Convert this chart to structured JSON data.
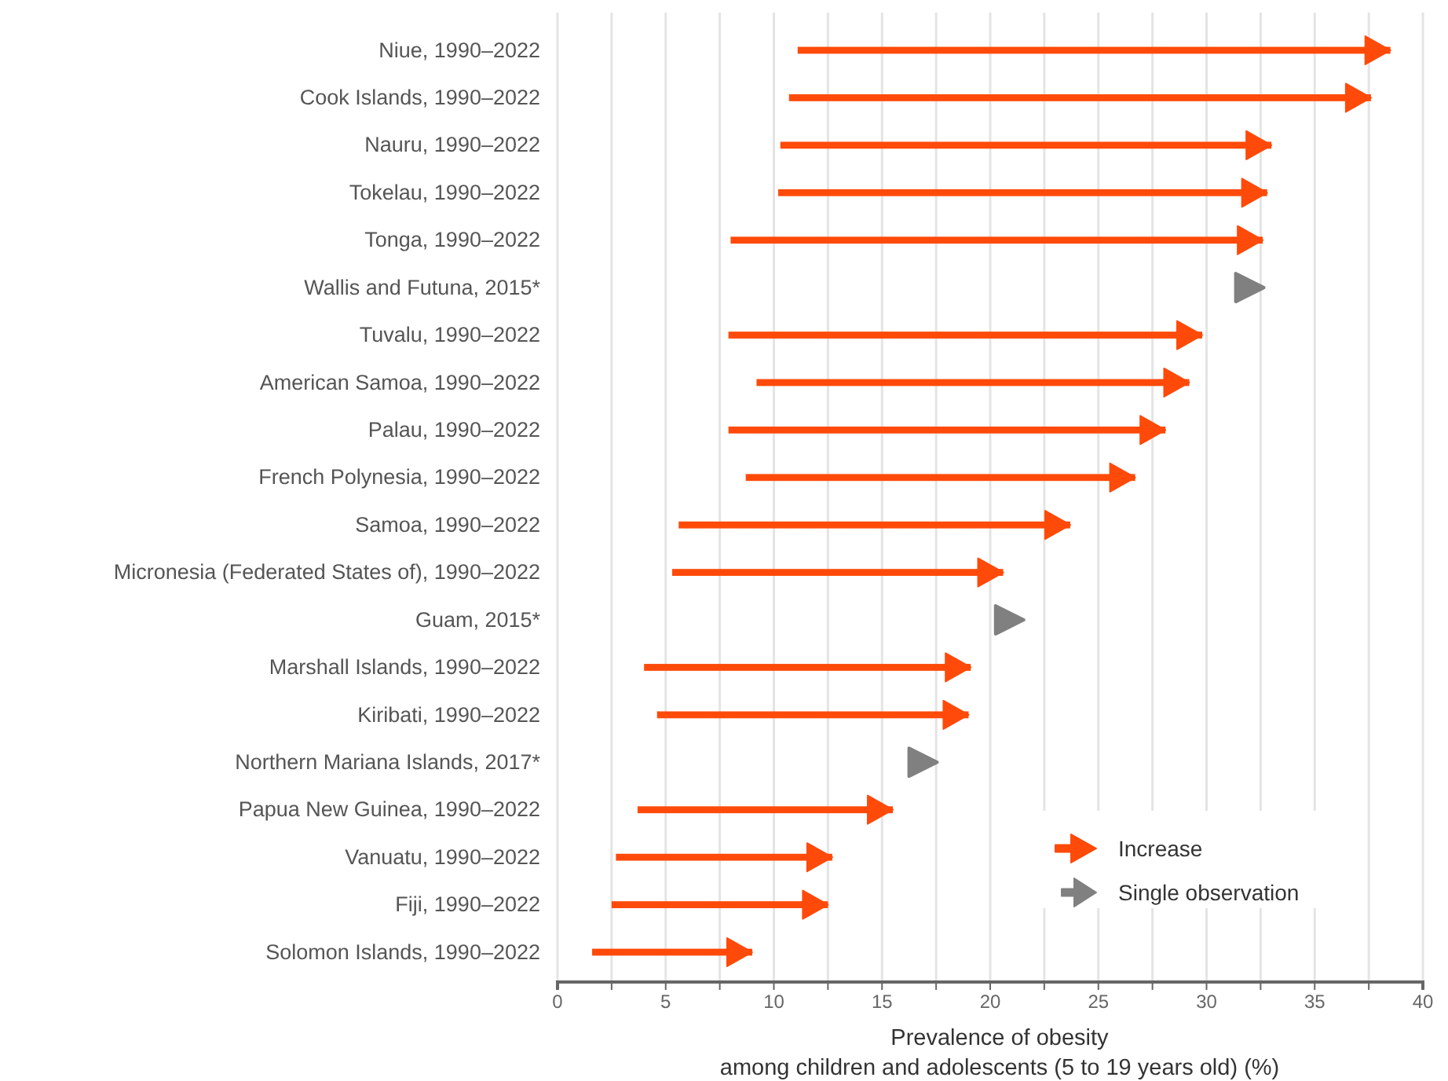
{
  "chart_data": {
    "type": "bar",
    "orientation": "horizontal",
    "categories": [
      "Niue, 1990–2022",
      "Cook Islands, 1990–2022",
      "Nauru, 1990–2022",
      "Tokelau, 1990–2022",
      "Tonga, 1990–2022",
      "Wallis and Futuna, 2015*",
      "Tuvalu, 1990–2022",
      "American Samoa, 1990–2022",
      "Palau, 1990–2022",
      "French Polynesia, 1990–2022",
      "Samoa, 1990–2022",
      "Micronesia (Federated States of), 1990–2022",
      "Guam, 2015*",
      "Marshall Islands, 1990–2022",
      "Kiribati, 1990–2022",
      "Northern Mariana Islands, 2017*",
      "Papua New Guinea, 1990–2022",
      "Vanuatu, 1990–2022",
      "Fiji, 1990–2022",
      "Solomon Islands, 1990–2022"
    ],
    "series": [
      {
        "name": "Increase",
        "type": "bar",
        "color": "#ff4a0a",
        "base": [
          11.1,
          10.7,
          10.3,
          10.2,
          8.0,
          null,
          7.9,
          9.2,
          7.9,
          8.7,
          5.6,
          5.3,
          null,
          4.0,
          4.6,
          null,
          3.7,
          2.7,
          2.5,
          1.6
        ],
        "values": [
          27.4,
          26.9,
          22.7,
          22.6,
          24.6,
          null,
          21.9,
          20.0,
          20.2,
          18.0,
          18.1,
          15.3,
          null,
          15.1,
          14.4,
          null,
          11.8,
          10.0,
          10.0,
          7.4
        ]
      },
      {
        "name": "Single observation",
        "type": "scatter",
        "color": "#808080",
        "x": [
          "Wallis and Futuna, 2015*",
          "Guam, 2015*",
          "Northern Mariana Islands, 2017*"
        ],
        "values": [
          32.0,
          20.9,
          16.9
        ]
      }
    ],
    "marker": "triangle",
    "xlabel": "Prevalence of obesity\namong children and adolescents (5 to 19 years old) (%)",
    "xlim": [
      0,
      40
    ],
    "xticks": [
      0,
      {
        "value": 2.5,
        "label": null
      },
      5,
      {
        "value": 7.5,
        "label": null
      },
      10,
      {
        "value": 12.5,
        "label": null
      },
      15,
      {
        "value": 17.5,
        "label": null
      },
      20,
      {
        "value": 22.5,
        "label": null
      },
      25,
      {
        "value": 27.5,
        "label": null
      },
      30,
      {
        "value": 32.5,
        "label": null
      },
      35,
      {
        "value": 37.5,
        "label": null
      },
      40
    ],
    "grid": "x",
    "legend": "bottom right"
  }
}
